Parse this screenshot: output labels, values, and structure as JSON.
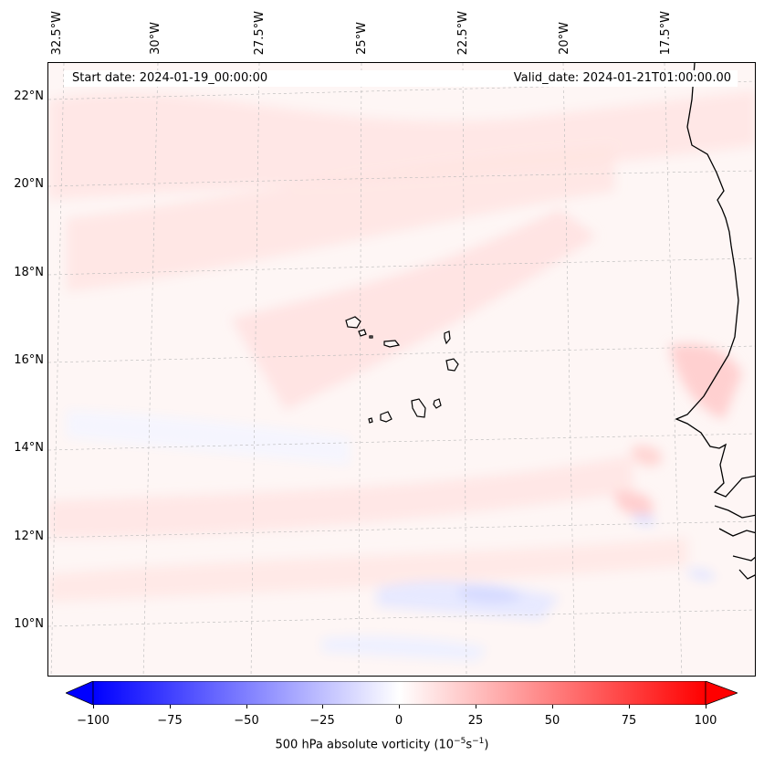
{
  "map": {
    "start_date": "Start date: 2024-01-19_00:00:00",
    "valid_date": "Valid_date: 2024-01-21T01:00:00.00",
    "lon_labels": [
      "32.5°W",
      "30°W",
      "27.5°W",
      "25°W",
      "22.5°W",
      "20°W",
      "17.5°W"
    ],
    "lat_labels": [
      "22°N",
      "20°N",
      "18°N",
      "16°N",
      "14°N",
      "12°N",
      "10°N"
    ],
    "field": "500 hPa absolute vorticity",
    "colors": {
      "max": "#ff0000",
      "mid": "#ffffff",
      "min": "#0000ff",
      "coast": "#000000"
    }
  },
  "colorbar": {
    "ticks": [
      "−100",
      "−75",
      "−50",
      "−25",
      "0",
      "25",
      "50",
      "75",
      "100"
    ],
    "values": [
      -100,
      -75,
      -50,
      -25,
      0,
      25,
      50,
      75,
      100
    ],
    "label_main": "500 hPa absolute vorticity (10",
    "label_exp1": "−5",
    "label_mid": "s",
    "label_exp2": "−1",
    "label_end": ")"
  }
}
